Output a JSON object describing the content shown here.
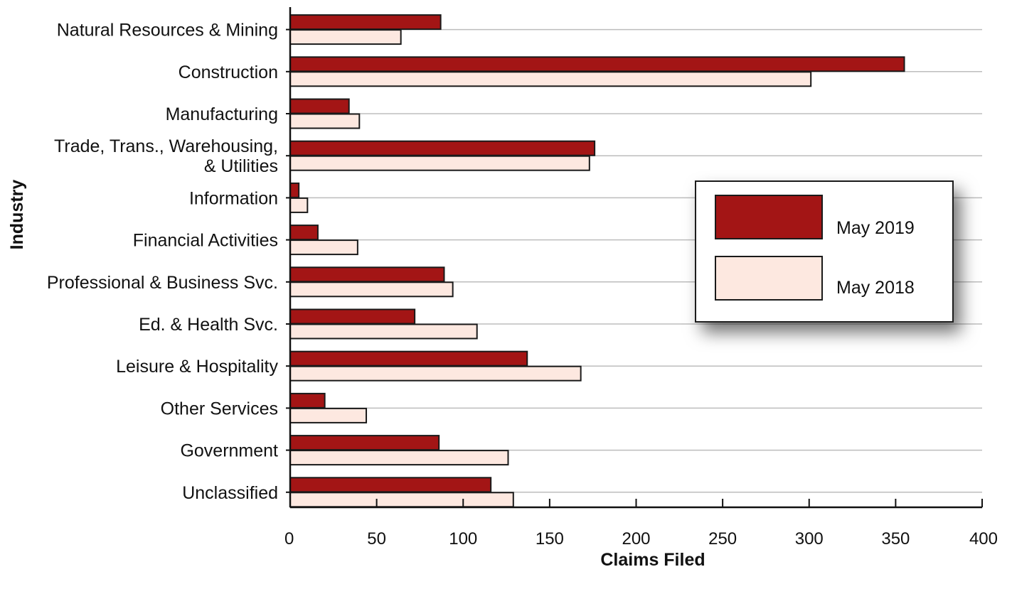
{
  "chart_data": {
    "type": "bar",
    "orientation": "horizontal",
    "xlabel": "Claims Filed",
    "ylabel": "Industry",
    "xlim": [
      0,
      400
    ],
    "xticks": [
      0,
      50,
      100,
      150,
      200,
      250,
      300,
      350,
      400
    ],
    "grid": "horizontal",
    "legend_position": "right",
    "categories": [
      [
        "Natural Resources & Mining"
      ],
      [
        "Construction"
      ],
      [
        "Manufacturing"
      ],
      [
        "Trade, Trans., Warehousing,",
        "& Utilities"
      ],
      [
        "Information"
      ],
      [
        "Financial Activities"
      ],
      [
        "Professional & Business Svc."
      ],
      [
        "Ed. & Health Svc."
      ],
      [
        "Leisure & Hospitality"
      ],
      [
        "Other Services"
      ],
      [
        "Government"
      ],
      [
        "Unclassified"
      ]
    ],
    "series": [
      {
        "name": "May 2019",
        "color": "#a31515",
        "values": [
          87,
          355,
          34,
          176,
          5,
          16,
          89,
          72,
          137,
          20,
          86,
          116
        ]
      },
      {
        "name": "May 2018",
        "color": "#fde8e0",
        "values": [
          64,
          301,
          40,
          173,
          10,
          39,
          94,
          108,
          168,
          44,
          126,
          129
        ]
      }
    ]
  }
}
